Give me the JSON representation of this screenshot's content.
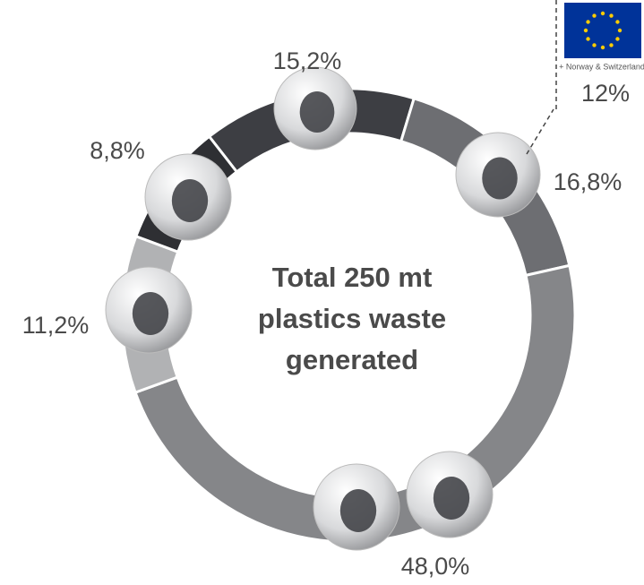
{
  "chart_data": {
    "type": "donut",
    "center_text": [
      "Total 250 mt",
      "plastics waste",
      "generated"
    ],
    "values": [
      15.2,
      16.8,
      48.0,
      11.2,
      8.8
    ],
    "value_labels": [
      "15,2%",
      "16,8%",
      "48,0%",
      "11,2%",
      "8,8%"
    ],
    "colors": [
      "#3d3e43",
      "#6d6e72",
      "#858689",
      "#b1b2b4",
      "#2e2f33"
    ],
    "inset": {
      "value": 12,
      "value_label": "12%",
      "note": "+ Norway & Switzerland",
      "color": "#003399"
    }
  }
}
